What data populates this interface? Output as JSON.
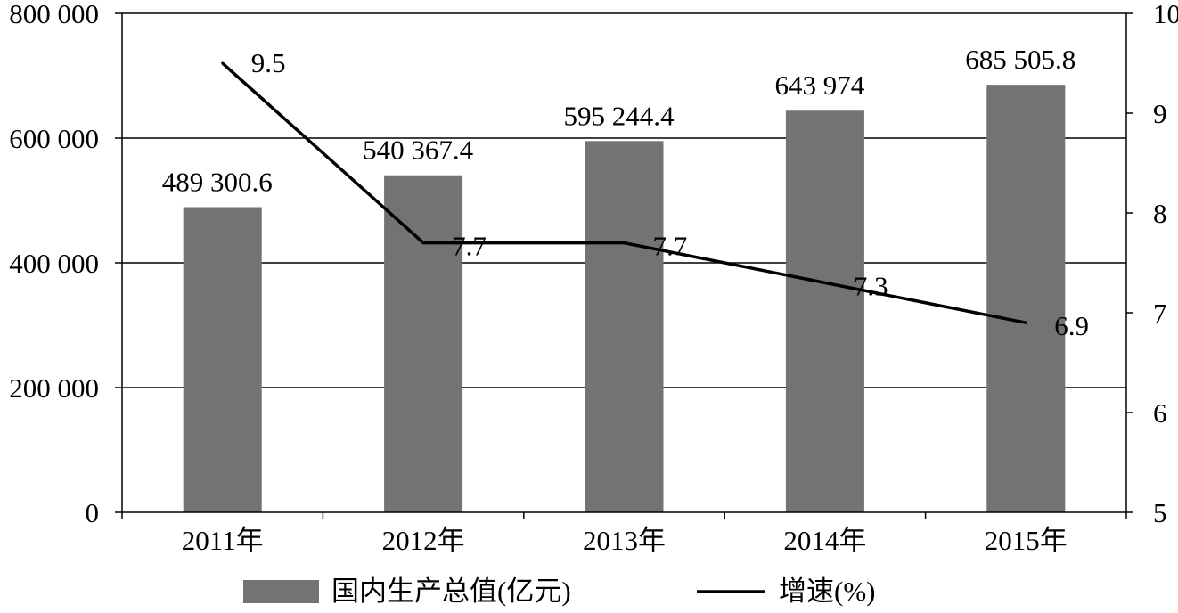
{
  "chart_data": {
    "type": "bar",
    "categories": [
      "2011年",
      "2012年",
      "2013年",
      "2014年",
      "2015年"
    ],
    "series": [
      {
        "name": "国内生产总值(亿元)",
        "type": "bar",
        "axis": "left",
        "values": [
          489300.6,
          540367.4,
          595244.4,
          643974,
          685505.8
        ],
        "labels": [
          "489 300.6",
          "540 367.4",
          "595 244.4",
          "643 974",
          "685 505.8"
        ],
        "color": "#737373"
      },
      {
        "name": "增速(%)",
        "type": "line",
        "axis": "right",
        "values": [
          9.5,
          7.7,
          7.7,
          7.3,
          6.9
        ],
        "labels": [
          "9.5",
          "7.7",
          "7.7",
          "7.3",
          "6.9"
        ],
        "color": "#000000"
      }
    ],
    "y_left": {
      "lim": [
        0,
        800000
      ],
      "ticks": [
        0,
        200000,
        400000,
        600000,
        800000
      ],
      "tick_labels": [
        "0",
        "200 000",
        "400 000",
        "600 000",
        "800 000"
      ]
    },
    "y_right": {
      "lim": [
        5,
        10
      ],
      "ticks": [
        5,
        6,
        7,
        8,
        9,
        10
      ],
      "tick_labels": [
        "5",
        "6",
        "7",
        "8",
        "9",
        "10"
      ]
    },
    "grid": true,
    "legend_position": "bottom"
  }
}
